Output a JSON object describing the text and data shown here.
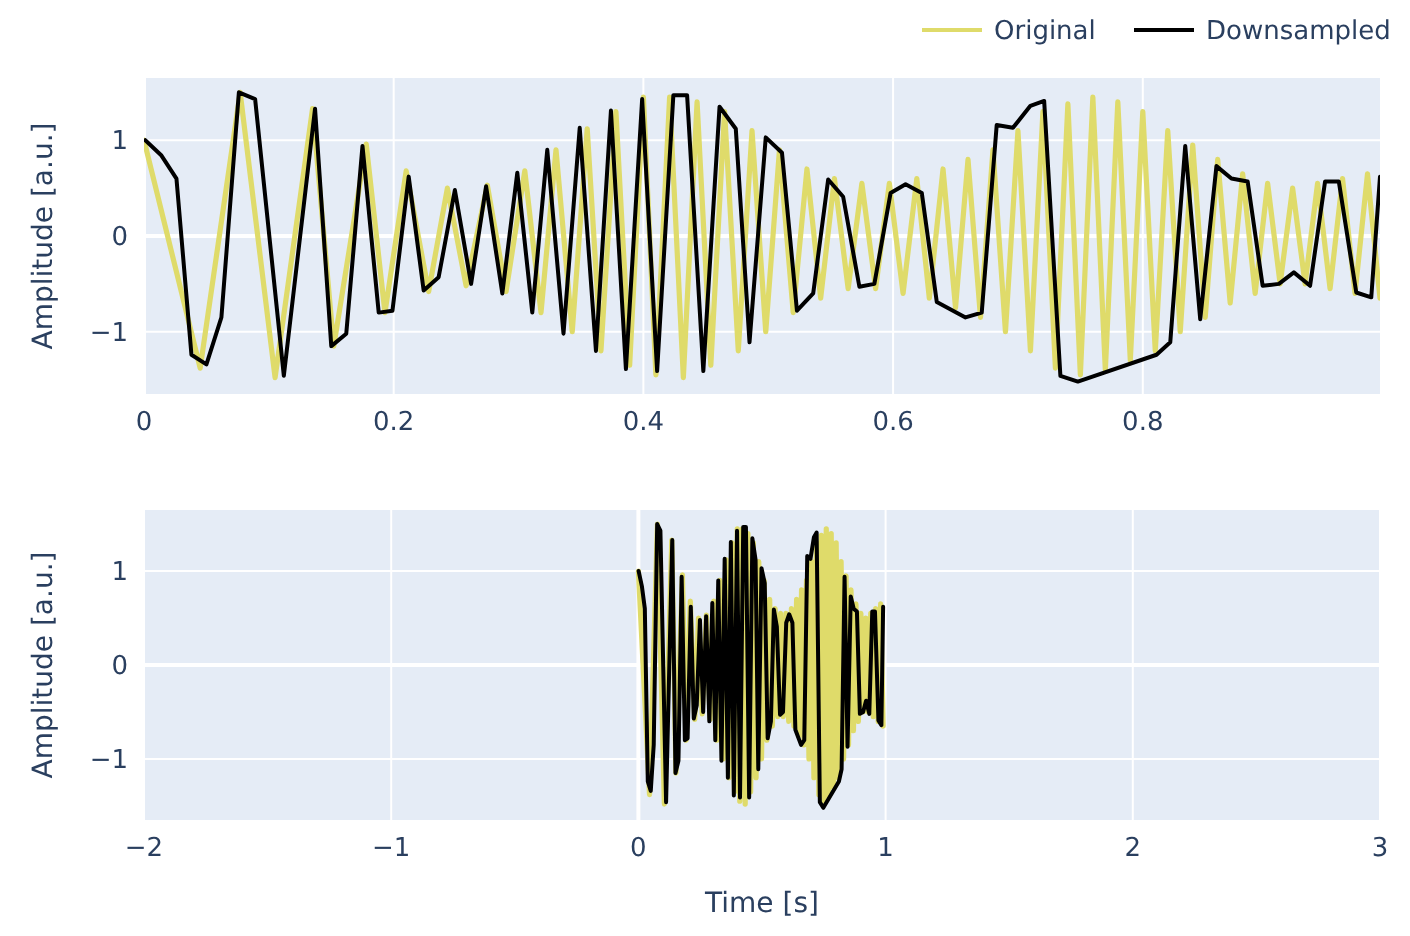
{
  "chart_data": [
    {
      "type": "line",
      "ylabel": "Amplitude [a.u.]",
      "xlim": [
        0,
        0.99
      ],
      "xticks": [
        0,
        0.2,
        0.4,
        0.6,
        0.8
      ],
      "ylim": [
        -1.65,
        1.65
      ],
      "yticks": [
        -1,
        0,
        1
      ],
      "grid": true,
      "legend": "top right",
      "marker": "none",
      "line_style": "solid",
      "series": [
        {
          "name": "Original",
          "color": "#dfdb6a",
          "x": [
            0,
            0.045,
            0.077,
            0.105,
            0.135,
            0.152,
            0.178,
            0.193,
            0.21,
            0.228,
            0.243,
            0.258,
            0.275,
            0.29,
            0.305,
            0.318,
            0.33,
            0.343,
            0.355,
            0.366,
            0.378,
            0.389,
            0.4,
            0.41,
            0.421,
            0.432,
            0.443,
            0.454,
            0.465,
            0.476,
            0.487,
            0.498,
            0.509,
            0.52,
            0.531,
            0.542,
            0.553,
            0.564,
            0.575,
            0.586,
            0.597,
            0.608,
            0.619,
            0.629,
            0.64,
            0.65,
            0.66,
            0.67,
            0.68,
            0.69,
            0.7,
            0.71,
            0.72,
            0.73,
            0.74,
            0.75,
            0.76,
            0.77,
            0.78,
            0.79,
            0.8,
            0.81,
            0.82,
            0.83,
            0.84,
            0.85,
            0.86,
            0.87,
            0.88,
            0.89,
            0.9,
            0.91,
            0.92,
            0.93,
            0.94,
            0.95,
            0.96,
            0.97,
            0.98,
            0.99
          ],
          "values": [
            1.0,
            -1.38,
            1.5,
            -1.48,
            1.33,
            -1.15,
            0.96,
            -0.8,
            0.68,
            -0.58,
            0.5,
            -0.52,
            0.53,
            -0.58,
            0.68,
            -0.8,
            0.9,
            -1.0,
            1.12,
            -1.2,
            1.3,
            -1.35,
            1.45,
            -1.45,
            1.45,
            -1.48,
            1.4,
            -1.35,
            1.3,
            -1.2,
            1.1,
            -1.0,
            0.9,
            -0.8,
            0.7,
            -0.65,
            0.6,
            -0.55,
            0.55,
            -0.55,
            0.55,
            -0.6,
            0.6,
            -0.65,
            0.7,
            -0.75,
            0.8,
            -0.85,
            0.9,
            -1.0,
            1.1,
            -1.2,
            1.3,
            -1.38,
            1.38,
            -1.45,
            1.45,
            -1.4,
            1.4,
            -1.3,
            1.3,
            -1.2,
            1.1,
            -1.0,
            0.95,
            -0.85,
            0.8,
            -0.7,
            0.65,
            -0.6,
            0.55,
            -0.5,
            0.5,
            -0.5,
            0.55,
            -0.55,
            0.6,
            -0.6,
            0.65,
            -0.65
          ]
        },
        {
          "name": "Downsampled",
          "color": "#000000",
          "x": [
            0.001,
            0.014,
            0.026,
            0.038,
            0.05,
            0.062,
            0.076,
            0.089,
            0.112,
            0.137,
            0.15,
            0.162,
            0.175,
            0.188,
            0.199,
            0.212,
            0.224,
            0.236,
            0.249,
            0.262,
            0.274,
            0.287,
            0.299,
            0.311,
            0.323,
            0.336,
            0.349,
            0.362,
            0.374,
            0.386,
            0.399,
            0.411,
            0.424,
            0.435,
            0.448,
            0.461,
            0.474,
            0.485,
            0.498,
            0.511,
            0.523,
            0.536,
            0.548,
            0.56,
            0.573,
            0.585,
            0.598,
            0.61,
            0.623,
            0.635,
            0.658,
            0.671,
            0.683,
            0.696,
            0.71,
            0.721,
            0.734,
            0.748,
            0.811,
            0.822,
            0.834,
            0.846,
            0.859,
            0.871,
            0.884,
            0.896,
            0.909,
            0.921,
            0.934,
            0.946,
            0.957,
            0.971,
            0.983,
            0.99
          ],
          "values": [
            1.0,
            0.84,
            0.6,
            -1.24,
            -1.34,
            -0.85,
            1.5,
            1.43,
            -1.46,
            1.33,
            -1.15,
            -1.02,
            0.94,
            -0.8,
            -0.78,
            0.62,
            -0.57,
            -0.43,
            0.48,
            -0.5,
            0.52,
            -0.6,
            0.66,
            -0.8,
            0.9,
            -1.02,
            1.13,
            -1.2,
            1.31,
            -1.39,
            1.43,
            -1.41,
            1.47,
            1.47,
            -1.41,
            1.35,
            1.12,
            -1.11,
            1.03,
            0.87,
            -0.78,
            -0.6,
            0.59,
            0.41,
            -0.53,
            -0.5,
            0.45,
            0.54,
            0.45,
            -0.69,
            -0.85,
            -0.8,
            1.16,
            1.13,
            1.36,
            1.41,
            -1.46,
            -1.52,
            -1.24,
            -1.11,
            0.94,
            -0.87,
            0.73,
            0.6,
            0.57,
            -0.52,
            -0.5,
            -0.38,
            -0.52,
            0.57,
            0.57,
            -0.59,
            -0.64,
            0.62
          ]
        }
      ]
    },
    {
      "type": "line",
      "xlabel": "Time [s]",
      "ylabel": "Amplitude [a.u.]",
      "xlim": [
        -2,
        3
      ],
      "xticks": [
        -2,
        -1,
        0,
        1,
        2,
        3
      ],
      "ylim": [
        -1.65,
        1.65
      ],
      "yticks": [
        -1,
        0,
        1
      ],
      "grid": true,
      "marker": "none",
      "line_style": "solid",
      "series": [
        {
          "color": "#dfdb6a",
          "x": [
            0,
            0.045,
            0.077,
            0.105,
            0.135,
            0.152,
            0.178,
            0.193,
            0.21,
            0.228,
            0.243,
            0.258,
            0.275,
            0.29,
            0.305,
            0.318,
            0.33,
            0.343,
            0.355,
            0.366,
            0.378,
            0.389,
            0.4,
            0.41,
            0.421,
            0.432,
            0.443,
            0.454,
            0.465,
            0.476,
            0.487,
            0.498,
            0.509,
            0.52,
            0.531,
            0.542,
            0.553,
            0.564,
            0.575,
            0.586,
            0.597,
            0.608,
            0.619,
            0.629,
            0.64,
            0.65,
            0.66,
            0.67,
            0.68,
            0.69,
            0.7,
            0.71,
            0.72,
            0.73,
            0.74,
            0.75,
            0.76,
            0.77,
            0.78,
            0.79,
            0.8,
            0.81,
            0.82,
            0.83,
            0.84,
            0.85,
            0.86,
            0.87,
            0.88,
            0.89,
            0.9,
            0.91,
            0.92,
            0.93,
            0.94,
            0.95,
            0.96,
            0.97,
            0.98,
            0.99
          ],
          "values": [
            1.0,
            -1.38,
            1.5,
            -1.48,
            1.33,
            -1.15,
            0.96,
            -0.8,
            0.68,
            -0.58,
            0.5,
            -0.52,
            0.53,
            -0.58,
            0.68,
            -0.8,
            0.9,
            -1.0,
            1.12,
            -1.2,
            1.3,
            -1.35,
            1.45,
            -1.45,
            1.45,
            -1.48,
            1.4,
            -1.35,
            1.3,
            -1.2,
            1.1,
            -1.0,
            0.9,
            -0.8,
            0.7,
            -0.65,
            0.6,
            -0.55,
            0.55,
            -0.55,
            0.55,
            -0.6,
            0.6,
            -0.65,
            0.7,
            -0.75,
            0.8,
            -0.85,
            0.9,
            -1.0,
            1.1,
            -1.2,
            1.3,
            -1.38,
            1.38,
            -1.45,
            1.45,
            -1.4,
            1.4,
            -1.3,
            1.3,
            -1.2,
            1.1,
            -1.0,
            0.95,
            -0.85,
            0.8,
            -0.7,
            0.65,
            -0.6,
            0.55,
            -0.5,
            0.5,
            -0.5,
            0.55,
            -0.55,
            0.6,
            -0.6,
            0.65,
            -0.65
          ]
        },
        {
          "color": "#000000",
          "x": [
            0.001,
            0.014,
            0.026,
            0.038,
            0.05,
            0.062,
            0.076,
            0.089,
            0.112,
            0.137,
            0.15,
            0.162,
            0.175,
            0.188,
            0.199,
            0.212,
            0.224,
            0.236,
            0.249,
            0.262,
            0.274,
            0.287,
            0.299,
            0.311,
            0.323,
            0.336,
            0.349,
            0.362,
            0.374,
            0.386,
            0.399,
            0.411,
            0.424,
            0.435,
            0.448,
            0.461,
            0.474,
            0.485,
            0.498,
            0.511,
            0.523,
            0.536,
            0.548,
            0.56,
            0.573,
            0.585,
            0.598,
            0.61,
            0.623,
            0.635,
            0.658,
            0.671,
            0.683,
            0.696,
            0.71,
            0.721,
            0.734,
            0.748,
            0.811,
            0.822,
            0.834,
            0.846,
            0.859,
            0.871,
            0.884,
            0.896,
            0.909,
            0.921,
            0.934,
            0.946,
            0.957,
            0.971,
            0.983,
            0.99
          ],
          "values": [
            1.0,
            0.84,
            0.6,
            -1.24,
            -1.34,
            -0.85,
            1.5,
            1.43,
            -1.46,
            1.33,
            -1.15,
            -1.02,
            0.94,
            -0.8,
            -0.78,
            0.62,
            -0.57,
            -0.43,
            0.48,
            -0.5,
            0.52,
            -0.6,
            0.66,
            -0.8,
            0.9,
            -1.02,
            1.13,
            -1.2,
            1.31,
            -1.39,
            1.43,
            -1.41,
            1.47,
            1.47,
            -1.41,
            1.35,
            1.12,
            -1.11,
            1.03,
            0.87,
            -0.78,
            -0.6,
            0.59,
            0.41,
            -0.53,
            -0.5,
            0.45,
            0.54,
            0.45,
            -0.69,
            -0.85,
            -0.8,
            1.16,
            1.13,
            1.36,
            1.41,
            -1.46,
            -1.52,
            -1.24,
            -1.11,
            0.94,
            -0.87,
            0.73,
            0.6,
            0.57,
            -0.52,
            -0.5,
            -0.38,
            -0.52,
            0.57,
            0.57,
            -0.59,
            -0.64,
            0.62
          ]
        }
      ]
    }
  ]
}
